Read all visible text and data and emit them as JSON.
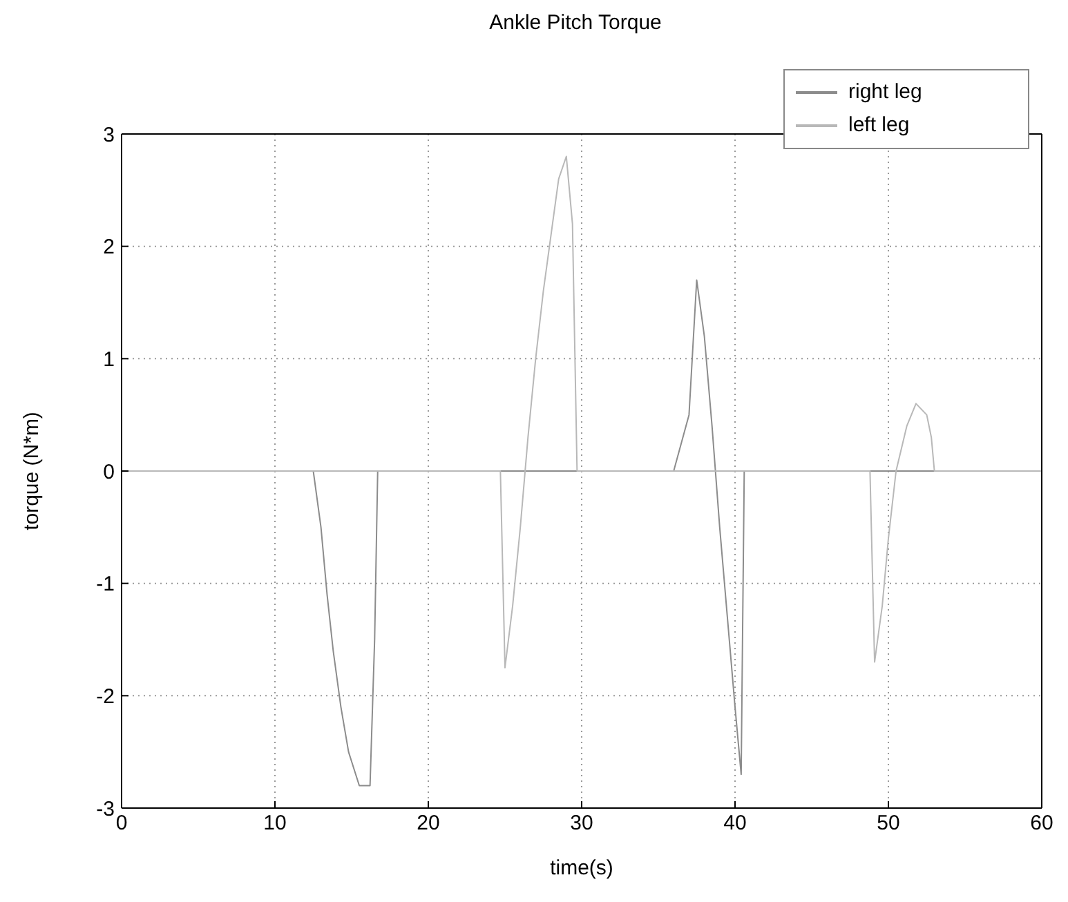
{
  "chart_data": {
    "type": "line",
    "title": "Ankle Pitch Torque",
    "xlabel": "time(s)",
    "ylabel": "torque (N*m)",
    "xlim": [
      0,
      60
    ],
    "xticks": [
      0,
      10,
      20,
      30,
      40,
      50,
      60
    ],
    "ylim": [
      -3,
      3
    ],
    "yticks": [
      -3,
      -2,
      -1,
      0,
      1,
      2,
      3
    ],
    "grid": true,
    "legend": "top right",
    "line_style": "solid",
    "marker": "none",
    "series": [
      {
        "name": "right leg",
        "color": "#8c8c8c",
        "x": [
          0,
          12.5,
          13,
          13.4,
          13.8,
          14.3,
          14.8,
          15.5,
          16.2,
          16.5,
          16.7,
          36,
          37,
          37.5,
          38,
          38.5,
          39,
          39.5,
          40,
          40.4,
          40.6,
          60
        ],
        "values": [
          0,
          0,
          -0.5,
          -1.1,
          -1.6,
          -2.1,
          -2.5,
          -2.8,
          -2.8,
          -1.5,
          0,
          0,
          0.5,
          1.7,
          1.2,
          0.4,
          -0.5,
          -1.3,
          -2.1,
          -2.7,
          0,
          0
        ]
      },
      {
        "name": "left leg",
        "color": "#b8b8b8",
        "x": [
          0,
          24.7,
          25,
          25.5,
          26,
          26.5,
          27,
          27.5,
          28,
          28.5,
          29,
          29.4,
          29.7,
          48.8,
          49.1,
          49.6,
          50,
          50.5,
          51.2,
          51.8,
          52.5,
          52.8,
          53,
          60
        ],
        "values": [
          0,
          0,
          -1.75,
          -1.2,
          -0.5,
          0.3,
          1,
          1.6,
          2.1,
          2.6,
          2.8,
          2.2,
          0,
          0,
          -1.7,
          -1.2,
          -0.6,
          0,
          0.4,
          0.6,
          0.5,
          0.3,
          0,
          0
        ]
      }
    ]
  }
}
